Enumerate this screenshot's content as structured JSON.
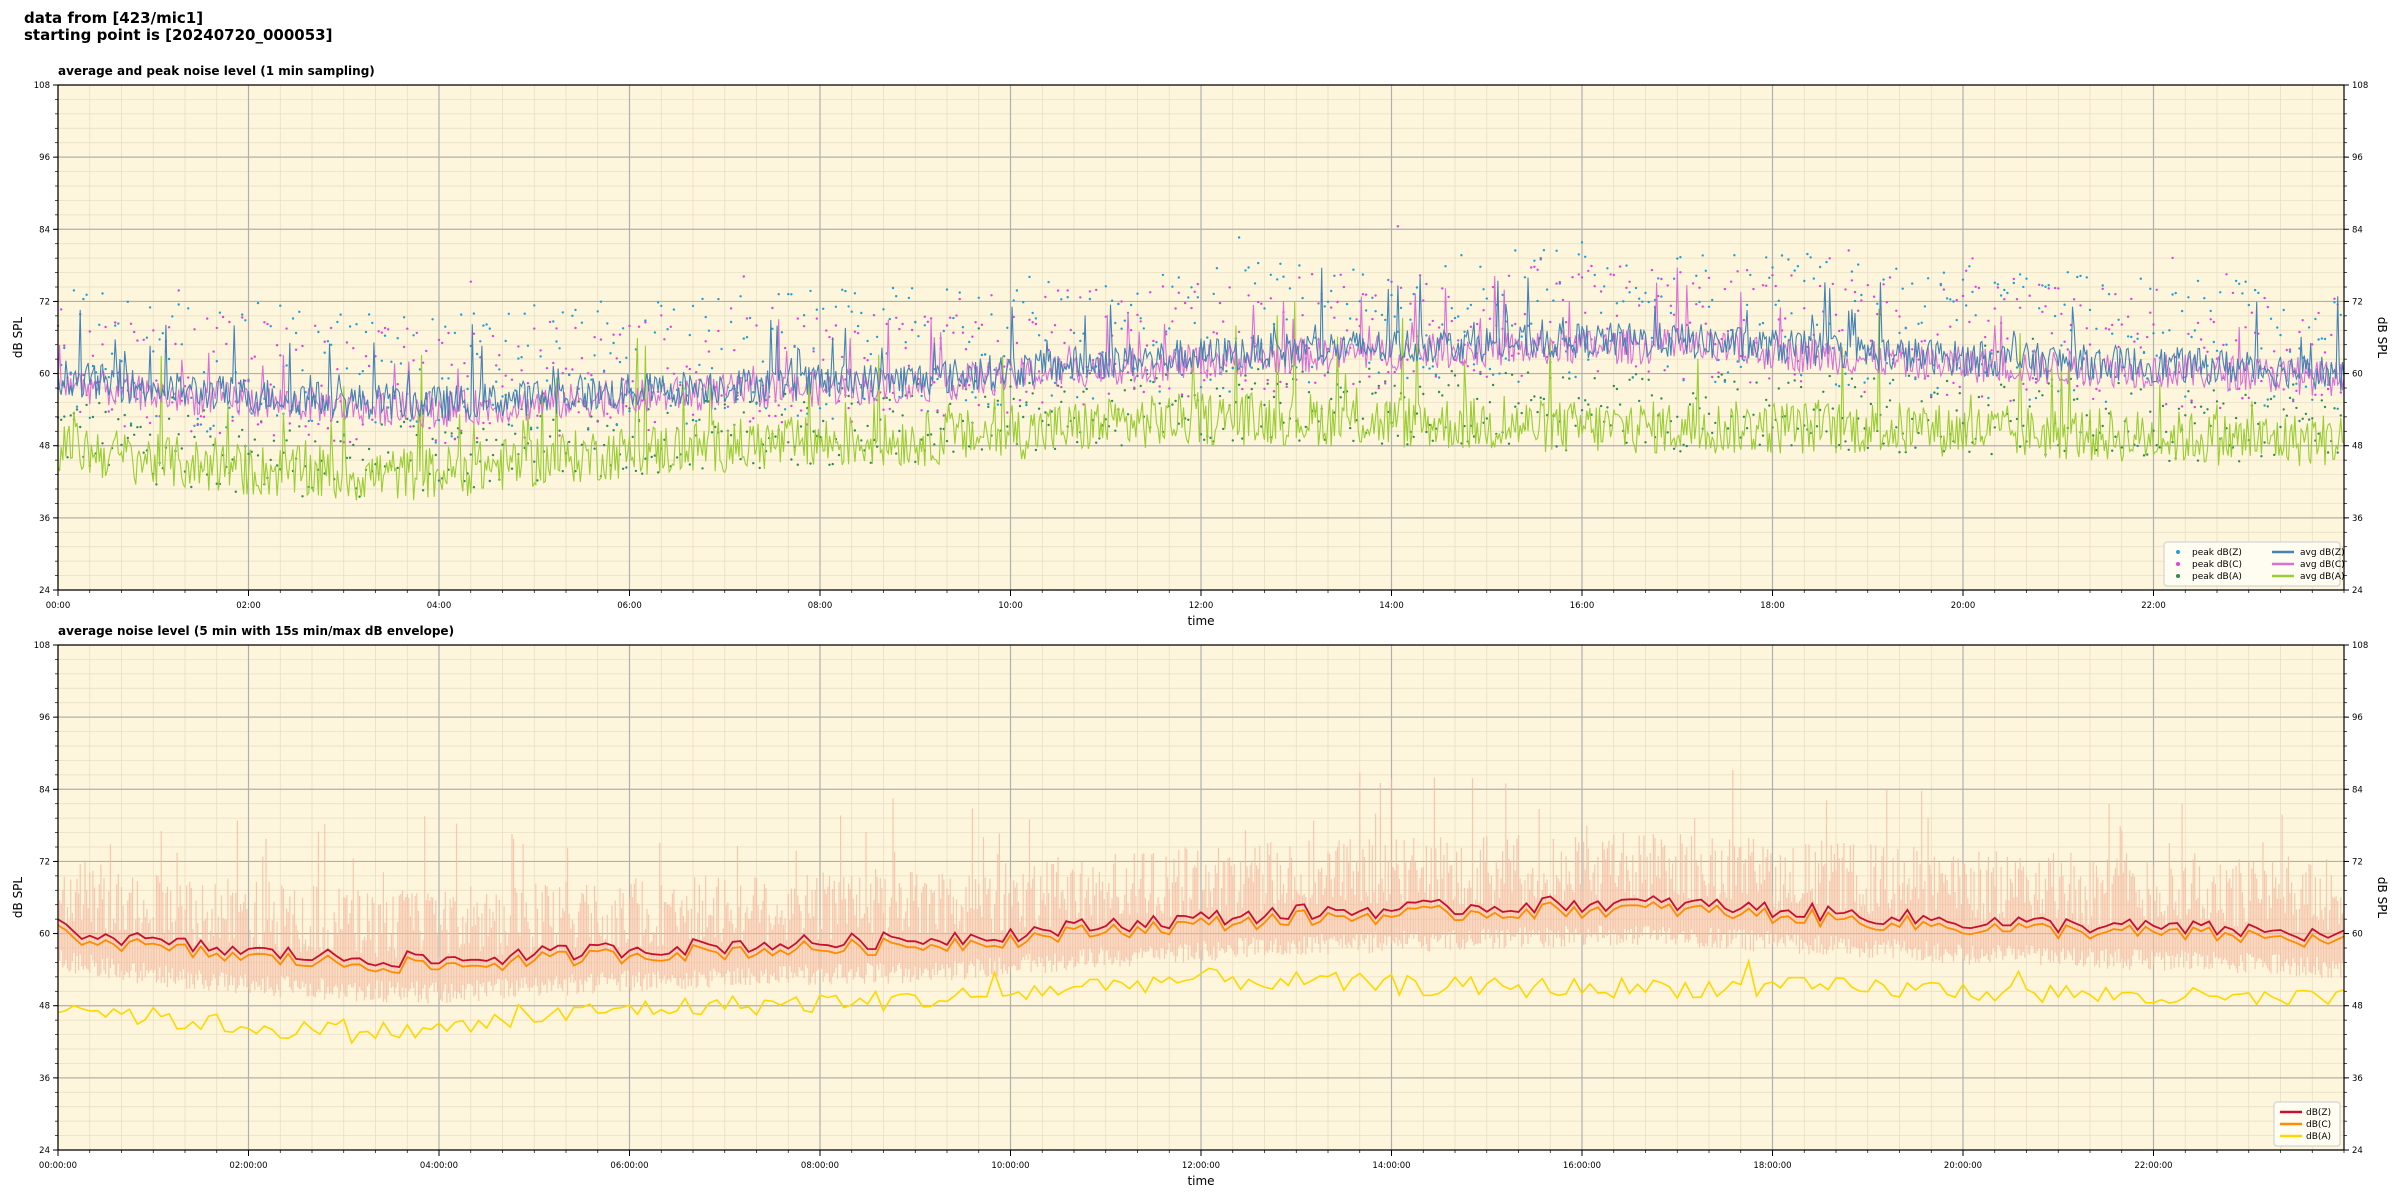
{
  "header": {
    "line1": "data from [423/mic1]",
    "line2": "starting point is [20240720_000053]"
  },
  "chart_data": [
    {
      "type": "line",
      "title": "average and peak noise level (1 min sampling)",
      "xlabel": "time",
      "ylabel": "dB SPL",
      "xlim": [
        "00:00",
        "24:00"
      ],
      "ylim": [
        24,
        108
      ],
      "x_tick_labels": [
        "00:00",
        "02:00",
        "04:00",
        "06:00",
        "08:00",
        "10:00",
        "12:00",
        "14:00",
        "16:00",
        "18:00",
        "20:00",
        "22:00"
      ],
      "y_ticks": [
        24,
        36,
        48,
        60,
        72,
        84,
        96,
        108
      ],
      "grid": true,
      "legend_position": "bottom-right",
      "background": "#fdf6dc",
      "sampling_minutes": 1,
      "series": [
        {
          "name": "peak dB(Z)",
          "kind": "points",
          "color": "#1f9fd6"
        },
        {
          "name": "peak dB(C)",
          "kind": "points",
          "color": "#e040e0"
        },
        {
          "name": "peak dB(A)",
          "kind": "points",
          "color": "#2e8b57"
        },
        {
          "name": "avg dB(Z)",
          "kind": "line",
          "color": "#4682b4"
        },
        {
          "name": "avg dB(C)",
          "kind": "line",
          "color": "#da70d6"
        },
        {
          "name": "avg dB(A)",
          "kind": "line",
          "color": "#9acd32"
        }
      ],
      "hourly_avg": {
        "hours": [
          0,
          1,
          2,
          3,
          4,
          5,
          6,
          7,
          8,
          9,
          10,
          11,
          12,
          13,
          14,
          15,
          16,
          17,
          18,
          19,
          20,
          21,
          22,
          23,
          24
        ],
        "avg_dBZ": [
          59.5,
          57.5,
          56.5,
          55.5,
          55.0,
          56.0,
          57.0,
          58.0,
          58.5,
          59.0,
          60.5,
          62.0,
          63.0,
          64.0,
          64.5,
          65.0,
          65.5,
          65.5,
          64.5,
          63.5,
          62.5,
          62.0,
          61.5,
          61.0,
          60.0
        ],
        "avg_dBC": [
          58.5,
          56.5,
          55.5,
          54.5,
          54.0,
          55.0,
          56.0,
          57.0,
          57.5,
          58.0,
          59.5,
          61.0,
          62.0,
          63.0,
          63.5,
          64.0,
          64.5,
          64.5,
          63.5,
          62.5,
          61.5,
          61.0,
          60.5,
          60.0,
          59.0
        ],
        "avg_dBA": [
          48.0,
          45.5,
          44.0,
          43.0,
          43.5,
          45.5,
          47.0,
          48.0,
          48.5,
          49.0,
          50.0,
          51.5,
          52.5,
          52.5,
          52.0,
          51.5,
          51.0,
          51.0,
          51.0,
          51.0,
          50.5,
          50.0,
          49.5,
          49.0,
          49.0
        ],
        "peak_offset_dB": 7
      }
    },
    {
      "type": "line",
      "title": "average noise level (5 min with 15s min/max dB envelope)",
      "xlabel": "time",
      "ylabel": "dB SPL",
      "xlim": [
        "00:00:00",
        "24:00:00"
      ],
      "ylim": [
        24,
        108
      ],
      "x_tick_labels": [
        "00:00:00",
        "02:00:00",
        "04:00:00",
        "06:00:00",
        "08:00:00",
        "10:00:00",
        "12:00:00",
        "14:00:00",
        "16:00:00",
        "18:00:00",
        "20:00:00",
        "22:00:00"
      ],
      "y_ticks": [
        24,
        36,
        48,
        60,
        72,
        84,
        96,
        108
      ],
      "grid": true,
      "legend_position": "bottom-right",
      "background": "#fdf6dc",
      "envelope_color": "#f4b8a0",
      "series": [
        {
          "name": "dB(Z)",
          "color": "#c8102e"
        },
        {
          "name": "dB(C)",
          "color": "#ff8c00"
        },
        {
          "name": "dB(A)",
          "color": "#ffd700"
        }
      ],
      "hourly_avg": {
        "hours": [
          0,
          1,
          2,
          3,
          4,
          5,
          6,
          7,
          8,
          9,
          10,
          11,
          12,
          13,
          14,
          15,
          16,
          17,
          18,
          19,
          20,
          21,
          22,
          23,
          24
        ],
        "dBZ": [
          61.0,
          58.5,
          57.0,
          56.0,
          55.5,
          56.5,
          57.5,
          58.0,
          58.5,
          59.0,
          60.0,
          61.5,
          62.5,
          63.5,
          64.0,
          64.5,
          65.0,
          65.0,
          64.0,
          63.0,
          62.0,
          61.5,
          61.0,
          60.5,
          59.5
        ],
        "dBC": [
          60.0,
          57.5,
          56.0,
          55.0,
          54.5,
          55.5,
          56.5,
          57.0,
          57.5,
          58.0,
          59.0,
          60.5,
          61.5,
          62.5,
          63.0,
          63.5,
          64.0,
          64.0,
          63.0,
          62.0,
          61.0,
          60.5,
          60.0,
          59.5,
          58.5
        ],
        "dBA": [
          48.5,
          46.0,
          44.5,
          43.5,
          44.0,
          46.0,
          47.5,
          48.0,
          48.5,
          49.0,
          50.0,
          51.5,
          52.5,
          52.0,
          51.5,
          51.0,
          51.0,
          51.0,
          51.0,
          51.0,
          50.5,
          50.0,
          49.5,
          49.0,
          49.0
        ],
        "envelope_max_offset_dB": 12,
        "envelope_min_offset_dB": -6
      }
    }
  ]
}
